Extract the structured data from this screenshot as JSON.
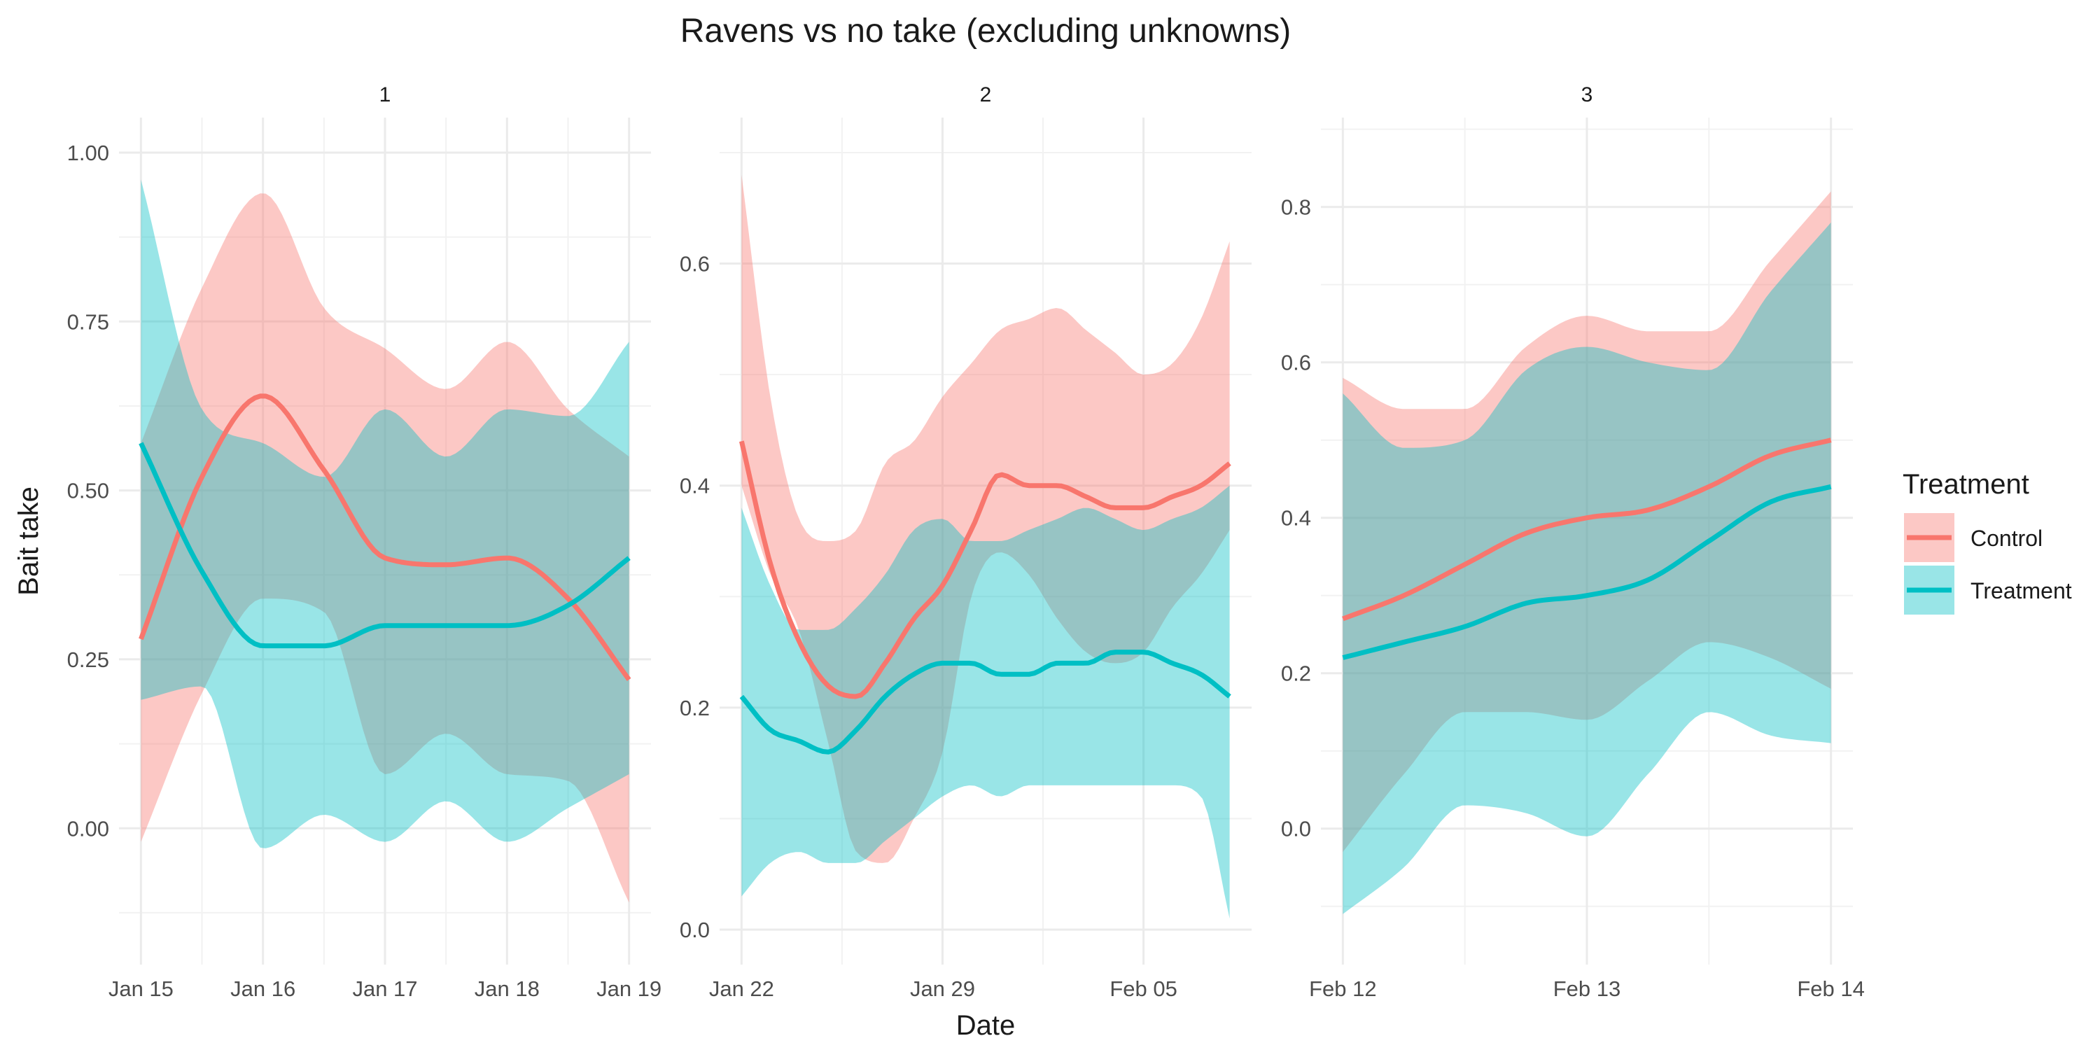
{
  "chart_data": {
    "type": "line",
    "title": "Ravens vs no take (excluding unknowns)",
    "xlabel": "Date",
    "ylabel": "Bait take",
    "grid": true,
    "legend": {
      "title": "Treatment",
      "placement": "right",
      "entries": [
        "Control",
        "Treatment"
      ]
    },
    "colors": {
      "Control": "#F8766D",
      "Treatment": "#00BFC4",
      "overlap": "#989898"
    },
    "panels": [
      {
        "strip": "1",
        "xlim": [
          "2023-01-15",
          "2023-01-19"
        ],
        "ylim": [
          -0.15,
          1.0
        ],
        "x_ticks": [
          {
            "x": "2023-01-15",
            "label": "Jan 15"
          },
          {
            "x": "2023-01-16",
            "label": "Jan 16"
          },
          {
            "x": "2023-01-17",
            "label": "Jan 17"
          },
          {
            "x": "2023-01-18",
            "label": "Jan 18"
          },
          {
            "x": "2023-01-19",
            "label": "Jan 19"
          }
        ],
        "y_ticks": [
          {
            "y": 0.0,
            "label": "0.00"
          },
          {
            "y": 0.25,
            "label": "0.25"
          },
          {
            "y": 0.5,
            "label": "0.50"
          },
          {
            "y": 0.75,
            "label": "0.75"
          },
          {
            "y": 1.0,
            "label": "1.00"
          }
        ],
        "series": [
          {
            "name": "Control",
            "x": [
              "2023-01-15",
              "2023-01-15T12:00",
              "2023-01-16",
              "2023-01-16T12:00",
              "2023-01-17",
              "2023-01-17T12:00",
              "2023-01-18",
              "2023-01-18T12:00",
              "2023-01-19"
            ],
            "values": [
              0.28,
              0.52,
              0.64,
              0.53,
              0.4,
              0.39,
              0.4,
              0.34,
              0.22
            ],
            "lower": [
              -0.02,
              0.2,
              0.34,
              0.32,
              0.08,
              0.14,
              0.08,
              0.07,
              -0.11
            ],
            "upper": [
              0.57,
              0.8,
              0.94,
              0.77,
              0.71,
              0.65,
              0.72,
              0.62,
              0.55
            ]
          },
          {
            "name": "Treatment",
            "x": [
              "2023-01-15",
              "2023-01-15T12:00",
              "2023-01-16",
              "2023-01-16T12:00",
              "2023-01-17",
              "2023-01-17T12:00",
              "2023-01-18",
              "2023-01-18T12:00",
              "2023-01-19"
            ],
            "values": [
              0.57,
              0.38,
              0.27,
              0.27,
              0.3,
              0.3,
              0.3,
              0.33,
              0.4
            ],
            "lower": [
              0.19,
              0.21,
              -0.03,
              0.02,
              -0.02,
              0.04,
              -0.02,
              0.03,
              0.08
            ],
            "upper": [
              0.96,
              0.62,
              0.57,
              0.52,
              0.62,
              0.55,
              0.62,
              0.61,
              0.72
            ]
          }
        ]
      },
      {
        "strip": "2",
        "xlim": [
          "2023-01-22",
          "2023-02-08"
        ],
        "ylim": [
          0.0,
          0.7
        ],
        "x_ticks": [
          {
            "x": "2023-01-22",
            "label": "Jan 22"
          },
          {
            "x": "2023-01-29",
            "label": "Jan 29"
          },
          {
            "x": "2023-02-05",
            "label": "Feb 05"
          }
        ],
        "y_ticks": [
          {
            "y": 0.0,
            "label": "0.0"
          },
          {
            "y": 0.2,
            "label": "0.2"
          },
          {
            "y": 0.4,
            "label": "0.4"
          },
          {
            "y": 0.6,
            "label": "0.6"
          }
        ],
        "series": [
          {
            "name": "Control",
            "x": [
              "2023-01-22",
              "2023-01-23",
              "2023-01-24",
              "2023-01-25",
              "2023-01-26",
              "2023-01-27",
              "2023-01-28",
              "2023-01-29",
              "2023-01-30",
              "2023-01-31",
              "2023-02-01",
              "2023-02-02",
              "2023-02-03",
              "2023-02-04",
              "2023-02-05",
              "2023-02-06",
              "2023-02-07",
              "2023-02-08"
            ],
            "values": [
              0.44,
              0.33,
              0.26,
              0.22,
              0.21,
              0.24,
              0.28,
              0.31,
              0.36,
              0.41,
              0.4,
              0.4,
              0.39,
              0.38,
              0.38,
              0.39,
              0.4,
              0.42
            ],
            "lower": [
              0.4,
              0.32,
              0.27,
              0.17,
              0.07,
              0.06,
              0.1,
              0.16,
              0.3,
              0.34,
              0.32,
              0.28,
              0.25,
              0.24,
              0.25,
              0.29,
              0.32,
              0.36
            ],
            "upper": [
              0.68,
              0.48,
              0.37,
              0.35,
              0.36,
              0.42,
              0.44,
              0.48,
              0.51,
              0.54,
              0.55,
              0.56,
              0.54,
              0.52,
              0.5,
              0.51,
              0.55,
              0.62
            ]
          },
          {
            "name": "Treatment",
            "x": [
              "2023-01-22",
              "2023-01-23",
              "2023-01-24",
              "2023-01-25",
              "2023-01-26",
              "2023-01-27",
              "2023-01-28",
              "2023-01-29",
              "2023-01-30",
              "2023-01-31",
              "2023-02-01",
              "2023-02-02",
              "2023-02-03",
              "2023-02-04",
              "2023-02-05",
              "2023-02-06",
              "2023-02-07",
              "2023-02-08"
            ],
            "values": [
              0.21,
              0.18,
              0.17,
              0.16,
              0.18,
              0.21,
              0.23,
              0.24,
              0.24,
              0.23,
              0.23,
              0.24,
              0.24,
              0.25,
              0.25,
              0.24,
              0.23,
              0.21
            ],
            "lower": [
              0.03,
              0.06,
              0.07,
              0.06,
              0.06,
              0.08,
              0.1,
              0.12,
              0.13,
              0.12,
              0.13,
              0.13,
              0.13,
              0.13,
              0.13,
              0.13,
              0.12,
              0.01
            ],
            "upper": [
              0.38,
              0.31,
              0.27,
              0.27,
              0.29,
              0.32,
              0.36,
              0.37,
              0.35,
              0.35,
              0.36,
              0.37,
              0.38,
              0.37,
              0.36,
              0.37,
              0.38,
              0.4
            ]
          }
        ]
      },
      {
        "strip": "3",
        "xlim": [
          "2023-02-12",
          "2023-02-14"
        ],
        "ylim": [
          -0.13,
          0.87
        ],
        "x_ticks": [
          {
            "x": "2023-02-12",
            "label": "Feb 12"
          },
          {
            "x": "2023-02-13",
            "label": "Feb 13"
          },
          {
            "x": "2023-02-14",
            "label": "Feb 14"
          }
        ],
        "y_ticks": [
          {
            "y": 0.0,
            "label": "0.0"
          },
          {
            "y": 0.2,
            "label": "0.2"
          },
          {
            "y": 0.4,
            "label": "0.4"
          },
          {
            "y": 0.6,
            "label": "0.6"
          },
          {
            "y": 0.8,
            "label": "0.8"
          }
        ],
        "series": [
          {
            "name": "Control",
            "x": [
              "2023-02-12",
              "2023-02-12T06:00",
              "2023-02-12T12:00",
              "2023-02-12T18:00",
              "2023-02-13",
              "2023-02-13T06:00",
              "2023-02-13T12:00",
              "2023-02-13T18:00",
              "2023-02-14"
            ],
            "values": [
              0.27,
              0.3,
              0.34,
              0.38,
              0.4,
              0.41,
              0.44,
              0.48,
              0.5
            ],
            "lower": [
              -0.03,
              0.07,
              0.15,
              0.15,
              0.14,
              0.19,
              0.24,
              0.22,
              0.18
            ],
            "upper": [
              0.58,
              0.54,
              0.54,
              0.62,
              0.66,
              0.64,
              0.64,
              0.73,
              0.82
            ]
          },
          {
            "name": "Treatment",
            "x": [
              "2023-02-12",
              "2023-02-12T06:00",
              "2023-02-12T12:00",
              "2023-02-12T18:00",
              "2023-02-13",
              "2023-02-13T06:00",
              "2023-02-13T12:00",
              "2023-02-13T18:00",
              "2023-02-14"
            ],
            "values": [
              0.22,
              0.24,
              0.26,
              0.29,
              0.3,
              0.32,
              0.37,
              0.42,
              0.44
            ],
            "lower": [
              -0.11,
              -0.05,
              0.03,
              0.02,
              -0.01,
              0.07,
              0.15,
              0.12,
              0.11
            ],
            "upper": [
              0.56,
              0.49,
              0.5,
              0.59,
              0.62,
              0.6,
              0.59,
              0.69,
              0.78
            ]
          }
        ]
      }
    ]
  }
}
